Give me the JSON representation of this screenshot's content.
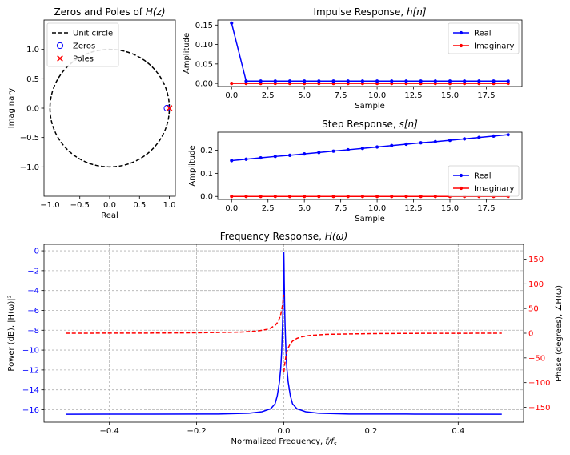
{
  "chart_data": [
    {
      "type": "scatter",
      "id": "zp",
      "title": "Zeros and Poles of H(z)",
      "xlabel": "Real",
      "ylabel": "Imaginary",
      "xlim": [
        -1.1,
        1.1
      ],
      "ylim": [
        -1.5,
        1.5
      ],
      "xticks": [
        -1.0,
        -0.5,
        0.0,
        0.5,
        1.0
      ],
      "xticklabels": [
        "−1.0",
        "−0.5",
        "0.0",
        "0.5",
        "1.0"
      ],
      "yticks": [
        -1.0,
        -0.5,
        0.0,
        0.5,
        1.0
      ],
      "yticklabels": [
        "−1.0",
        "−0.5",
        "0.0",
        "0.5",
        "1.0"
      ],
      "unit_circle": {
        "name": "Unit circle",
        "radius": 1.0,
        "color": "#000000"
      },
      "series": [
        {
          "name": "Zeros",
          "marker": "circle",
          "color": "#0000ff",
          "points": [
            [
              0.96,
              0.0
            ]
          ]
        },
        {
          "name": "Poles",
          "marker": "x",
          "color": "#ff0000",
          "points": [
            [
              1.0,
              0.0
            ]
          ]
        }
      ],
      "legend": "top-left",
      "grid": false
    },
    {
      "type": "line",
      "id": "imp",
      "title": "Impulse Response, h[n]",
      "xlabel": "Sample",
      "ylabel": "Amplitude",
      "xlim": [
        -0.95,
        19.95
      ],
      "ylim": [
        -0.008,
        0.163
      ],
      "xticks": [
        0.0,
        2.5,
        5.0,
        7.5,
        10.0,
        12.5,
        15.0,
        17.5
      ],
      "xticklabels": [
        "0.0",
        "2.5",
        "5.0",
        "7.5",
        "10.0",
        "12.5",
        "15.0",
        "17.5"
      ],
      "yticks": [
        0.0,
        0.05,
        0.1,
        0.15
      ],
      "yticklabels": [
        "0.00",
        "0.05",
        "0.10",
        "0.15"
      ],
      "x": [
        0,
        1,
        2,
        3,
        4,
        5,
        6,
        7,
        8,
        9,
        10,
        11,
        12,
        13,
        14,
        15,
        16,
        17,
        18,
        19
      ],
      "series": [
        {
          "name": "Real",
          "color": "#0000ff",
          "values": [
            0.155,
            0.0059,
            0.0059,
            0.0059,
            0.0059,
            0.0059,
            0.0059,
            0.0059,
            0.0059,
            0.0059,
            0.0059,
            0.0059,
            0.0059,
            0.0059,
            0.0059,
            0.0059,
            0.0059,
            0.0059,
            0.0059,
            0.0059
          ]
        },
        {
          "name": "Imaginary",
          "color": "#ff0000",
          "values": [
            0,
            0,
            0,
            0,
            0,
            0,
            0,
            0,
            0,
            0,
            0,
            0,
            0,
            0,
            0,
            0,
            0,
            0,
            0,
            0
          ]
        }
      ],
      "legend": "top-right",
      "grid": false
    },
    {
      "type": "line",
      "id": "step",
      "title": "Step Response, s[n]",
      "xlabel": "Sample",
      "ylabel": "Amplitude",
      "xlim": [
        -0.95,
        19.95
      ],
      "ylim": [
        -0.013,
        0.278
      ],
      "xticks": [
        0.0,
        2.5,
        5.0,
        7.5,
        10.0,
        12.5,
        15.0,
        17.5
      ],
      "xticklabels": [
        "0.0",
        "2.5",
        "5.0",
        "7.5",
        "10.0",
        "12.5",
        "15.0",
        "17.5"
      ],
      "yticks": [
        0.0,
        0.1,
        0.2
      ],
      "yticklabels": [
        "0.0",
        "0.1",
        "0.2"
      ],
      "x": [
        0,
        1,
        2,
        3,
        4,
        5,
        6,
        7,
        8,
        9,
        10,
        11,
        12,
        13,
        14,
        15,
        16,
        17,
        18,
        19
      ],
      "series": [
        {
          "name": "Real",
          "color": "#0000ff",
          "values": [
            0.155,
            0.161,
            0.167,
            0.173,
            0.178,
            0.184,
            0.19,
            0.196,
            0.202,
            0.208,
            0.214,
            0.22,
            0.226,
            0.232,
            0.237,
            0.243,
            0.249,
            0.255,
            0.261,
            0.267
          ]
        },
        {
          "name": "Imaginary",
          "color": "#ff0000",
          "values": [
            0,
            0,
            0,
            0,
            0,
            0,
            0,
            0,
            0,
            0,
            0,
            0,
            0,
            0,
            0,
            0,
            0,
            0,
            0,
            0
          ]
        }
      ],
      "legend": "bottom-right",
      "grid": false
    },
    {
      "type": "line",
      "id": "freq",
      "title": "Frequency Response, H(ω)",
      "xlabel": "Normalized Frequency, f/f",
      "xlabel_sub": "s",
      "ylabel": "Power (dB), |H(ω)|²",
      "ylabel2": "Phase (degrees), ∠H(ω)",
      "xlim": [
        -0.55,
        0.55
      ],
      "ylim": [
        -17.25,
        0.65
      ],
      "ylim2": [
        -180,
        180
      ],
      "xticks": [
        -0.4,
        -0.2,
        0.0,
        0.2,
        0.4
      ],
      "xticklabels": [
        "−0.4",
        "−0.2",
        "0.0",
        "0.2",
        "0.4"
      ],
      "yticks": [
        0,
        -2,
        -4,
        -6,
        -8,
        -10,
        -12,
        -14,
        -16
      ],
      "yticklabels": [
        "0",
        "−2",
        "−4",
        "−6",
        "−8",
        "−10",
        "−12",
        "−14",
        "−16"
      ],
      "yticks2": [
        150,
        100,
        50,
        0,
        -50,
        -100,
        -150
      ],
      "yticklabels2": [
        "150",
        "100",
        "50",
        "0",
        "−50",
        "−100",
        "−150"
      ],
      "series": [
        {
          "name": "Power",
          "axis": "left",
          "color": "#0000ff",
          "style": "solid",
          "points": [
            [
              -0.5,
              -16.45
            ],
            [
              -0.3,
              -16.44
            ],
            [
              -0.15,
              -16.43
            ],
            [
              -0.08,
              -16.35
            ],
            [
              -0.05,
              -16.2
            ],
            [
              -0.03,
              -15.9
            ],
            [
              -0.02,
              -15.4
            ],
            [
              -0.015,
              -14.6
            ],
            [
              -0.01,
              -13.2
            ],
            [
              -0.007,
              -11.8
            ],
            [
              -0.005,
              -10.2
            ],
            [
              -0.003,
              -7.6
            ],
            [
              -0.002,
              -5.8
            ],
            [
              -0.001,
              -3.0
            ],
            [
              -0.0005,
              -1.2
            ],
            [
              0.0,
              -0.15
            ],
            [
              0.0005,
              -1.2
            ],
            [
              0.001,
              -3.0
            ],
            [
              0.002,
              -5.8
            ],
            [
              0.003,
              -7.6
            ],
            [
              0.005,
              -10.2
            ],
            [
              0.007,
              -11.8
            ],
            [
              0.01,
              -13.2
            ],
            [
              0.015,
              -14.6
            ],
            [
              0.02,
              -15.4
            ],
            [
              0.03,
              -15.9
            ],
            [
              0.05,
              -16.2
            ],
            [
              0.08,
              -16.35
            ],
            [
              0.15,
              -16.43
            ],
            [
              0.3,
              -16.44
            ],
            [
              0.5,
              -16.45
            ]
          ]
        },
        {
          "name": "Phase",
          "axis": "right",
          "color": "#ff0000",
          "style": "dashed",
          "points": [
            [
              -0.5,
              0.0
            ],
            [
              -0.3,
              0.3
            ],
            [
              -0.2,
              0.8
            ],
            [
              -0.1,
              2.2
            ],
            [
              -0.06,
              4.5
            ],
            [
              -0.04,
              7.5
            ],
            [
              -0.03,
              10.5
            ],
            [
              -0.02,
              16.0
            ],
            [
              -0.015,
              21.0
            ],
            [
              -0.01,
              30.0
            ],
            [
              -0.007,
              38.0
            ],
            [
              -0.005,
              46.0
            ],
            [
              -0.003,
              57.0
            ],
            [
              -0.002,
              64.0
            ],
            [
              -0.001,
              72.0
            ],
            [
              -0.0003,
              78.0
            ],
            [
              0.0003,
              -78.0
            ],
            [
              0.001,
              -72.0
            ],
            [
              0.002,
              -64.0
            ],
            [
              0.003,
              -57.0
            ],
            [
              0.005,
              -46.0
            ],
            [
              0.007,
              -38.0
            ],
            [
              0.01,
              -30.0
            ],
            [
              0.015,
              -21.0
            ],
            [
              0.02,
              -16.0
            ],
            [
              0.03,
              -10.5
            ],
            [
              0.04,
              -7.5
            ],
            [
              0.06,
              -4.5
            ],
            [
              0.1,
              -2.2
            ],
            [
              0.2,
              -0.8
            ],
            [
              0.3,
              -0.3
            ],
            [
              0.5,
              0.0
            ]
          ]
        }
      ],
      "grid": true
    }
  ]
}
